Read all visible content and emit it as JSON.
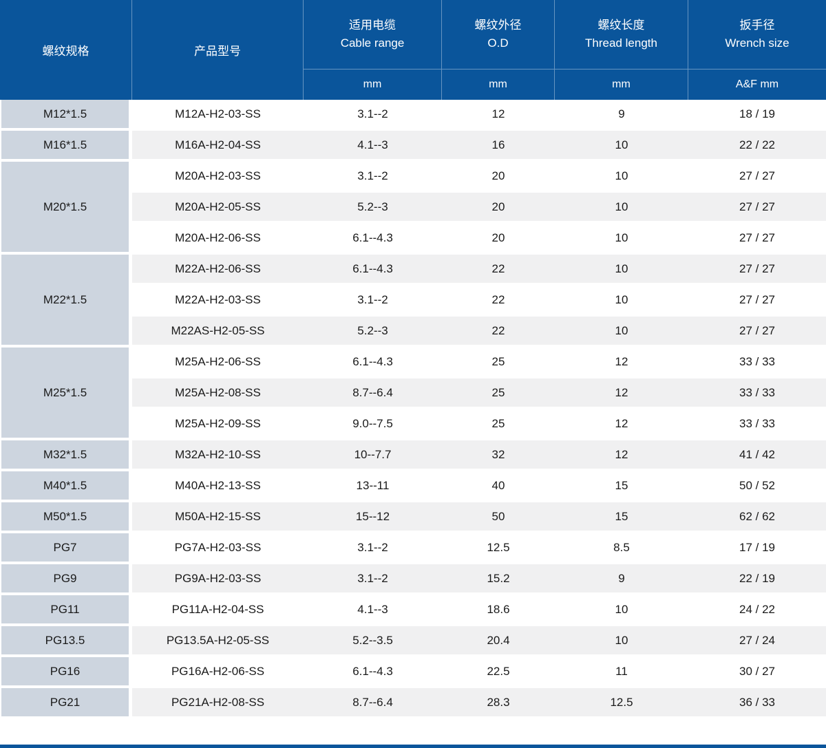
{
  "table": {
    "header": {
      "col_thread_spec": "螺纹规格",
      "col_model": "产品型号",
      "col_cable": {
        "zh": "适用电缆",
        "en": "Cable range",
        "unit": "mm"
      },
      "col_od": {
        "zh": "螺纹外径",
        "en": "O.D",
        "unit": "mm"
      },
      "col_thread_length": {
        "zh": "螺纹长度",
        "en": "Thread length",
        "unit": "mm"
      },
      "col_wrench": {
        "zh": "扳手径",
        "en": "Wrench size",
        "unit": "A&F mm"
      }
    },
    "groups": [
      {
        "spec": "M12*1.5",
        "rows": [
          [
            "M12A-H2-03-SS",
            "3.1--2",
            "12",
            "9",
            "18 / 19"
          ]
        ]
      },
      {
        "spec": "M16*1.5",
        "rows": [
          [
            "M16A-H2-04-SS",
            "4.1--3",
            "16",
            "10",
            "22 / 22"
          ]
        ]
      },
      {
        "spec": "M20*1.5",
        "rows": [
          [
            "M20A-H2-03-SS",
            "3.1--2",
            "20",
            "10",
            "27 / 27"
          ],
          [
            "M20A-H2-05-SS",
            "5.2--3",
            "20",
            "10",
            "27 / 27"
          ],
          [
            "M20A-H2-06-SS",
            "6.1--4.3",
            "20",
            "10",
            "27 / 27"
          ]
        ]
      },
      {
        "spec": "M22*1.5",
        "rows": [
          [
            "M22A-H2-06-SS",
            "6.1--4.3",
            "22",
            "10",
            "27 / 27"
          ],
          [
            "M22A-H2-03-SS",
            "3.1--2",
            "22",
            "10",
            "27 / 27"
          ],
          [
            "M22AS-H2-05-SS",
            "5.2--3",
            "22",
            "10",
            "27 / 27"
          ]
        ]
      },
      {
        "spec": "M25*1.5",
        "rows": [
          [
            "M25A-H2-06-SS",
            "6.1--4.3",
            "25",
            "12",
            "33 / 33"
          ],
          [
            "M25A-H2-08-SS",
            "8.7--6.4",
            "25",
            "12",
            "33 / 33"
          ],
          [
            "M25A-H2-09-SS",
            "9.0--7.5",
            "25",
            "12",
            "33 / 33"
          ]
        ]
      },
      {
        "spec": "M32*1.5",
        "rows": [
          [
            "M32A-H2-10-SS",
            "10--7.7",
            "32",
            "12",
            "41 / 42"
          ]
        ]
      },
      {
        "spec": "M40*1.5",
        "rows": [
          [
            "M40A-H2-13-SS",
            "13--11",
            "40",
            "15",
            "50 / 52"
          ]
        ]
      },
      {
        "spec": "M50*1.5",
        "rows": [
          [
            "M50A-H2-15-SS",
            "15--12",
            "50",
            "15",
            "62 / 62"
          ]
        ]
      },
      {
        "spec": "PG7",
        "rows": [
          [
            "PG7A-H2-03-SS",
            "3.1--2",
            "12.5",
            "8.5",
            "17 / 19"
          ]
        ]
      },
      {
        "spec": "PG9",
        "rows": [
          [
            "PG9A-H2-03-SS",
            "3.1--2",
            "15.2",
            "9",
            "22 / 19"
          ]
        ]
      },
      {
        "spec": "PG11",
        "rows": [
          [
            "PG11A-H2-04-SS",
            "4.1--3",
            "18.6",
            "10",
            "24 / 22"
          ]
        ]
      },
      {
        "spec": "PG13.5",
        "rows": [
          [
            "PG13.5A-H2-05-SS",
            "5.2--3.5",
            "20.4",
            "10",
            "27 / 24"
          ]
        ]
      },
      {
        "spec": "PG16",
        "rows": [
          [
            "PG16A-H2-06-SS",
            "6.1--4.3",
            "22.5",
            "11",
            "30 / 27"
          ]
        ]
      },
      {
        "spec": "PG21",
        "rows": [
          [
            "PG21A-H2-08-SS",
            "8.7--6.4",
            "28.3",
            "12.5",
            "36 / 33"
          ]
        ]
      }
    ],
    "colors": {
      "header_bg": "#0a559b",
      "spec_cell_bg": "#cdd5df",
      "row_bg": "#ffffff",
      "row_alt_bg": "#f0f0f1",
      "header_text": "#ffffff",
      "body_text": "#1a1a1a"
    }
  }
}
